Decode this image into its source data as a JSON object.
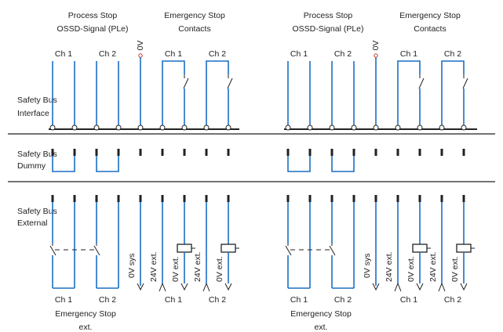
{
  "rows": {
    "interface": [
      "Safety Bus",
      "Interface"
    ],
    "dummy": [
      "Safety Bus",
      "Dummy"
    ],
    "external": [
      "Safety Bus",
      "External"
    ]
  },
  "groups": [
    {
      "process_stop_title": [
        "Process Stop",
        "OSSD-Signal (PLe)"
      ],
      "estop_title": [
        "Emergency Stop",
        "Contacts"
      ],
      "ossd_ch1": "Ch 1",
      "ossd_ch2": "Ch 2",
      "zero_v": "0V",
      "estop_ch1": "Ch 1",
      "estop_ch2": "Ch 2",
      "bottom_ch1": "Ch 1",
      "bottom_ch2": "Ch 2",
      "bottom_title": [
        "Emergency Stop",
        "ext."
      ],
      "rot_labels": [
        "0V sys",
        "24V ext.",
        "0V ext.",
        "24V ext.",
        "0V ext."
      ],
      "bottom_estop_ch1": "Ch 1",
      "bottom_estop_ch2": "Ch 2"
    },
    {
      "process_stop_title": [
        "Process Stop",
        "OSSD-Signal (PLe)"
      ],
      "estop_title": [
        "Emergency Stop",
        "Contacts"
      ],
      "ossd_ch1": "Ch 1",
      "ossd_ch2": "Ch 2",
      "zero_v": "0V",
      "estop_ch1": "Ch 1",
      "estop_ch2": "Ch 2",
      "bottom_ch1": "Ch 1",
      "bottom_ch2": "Ch 2",
      "bottom_title": [
        "Emergency Stop",
        "ext."
      ],
      "rot_labels": [
        "0V sys",
        "24V ext.",
        "0V ext.",
        "24V ext.",
        "0V ext."
      ],
      "bottom_estop_ch1": "Ch 1",
      "bottom_estop_ch2": "Ch 2"
    }
  ],
  "colors": {
    "wire": "#1a6fc4",
    "line": "#222222",
    "zero_v_terminal": "#c0392b"
  }
}
